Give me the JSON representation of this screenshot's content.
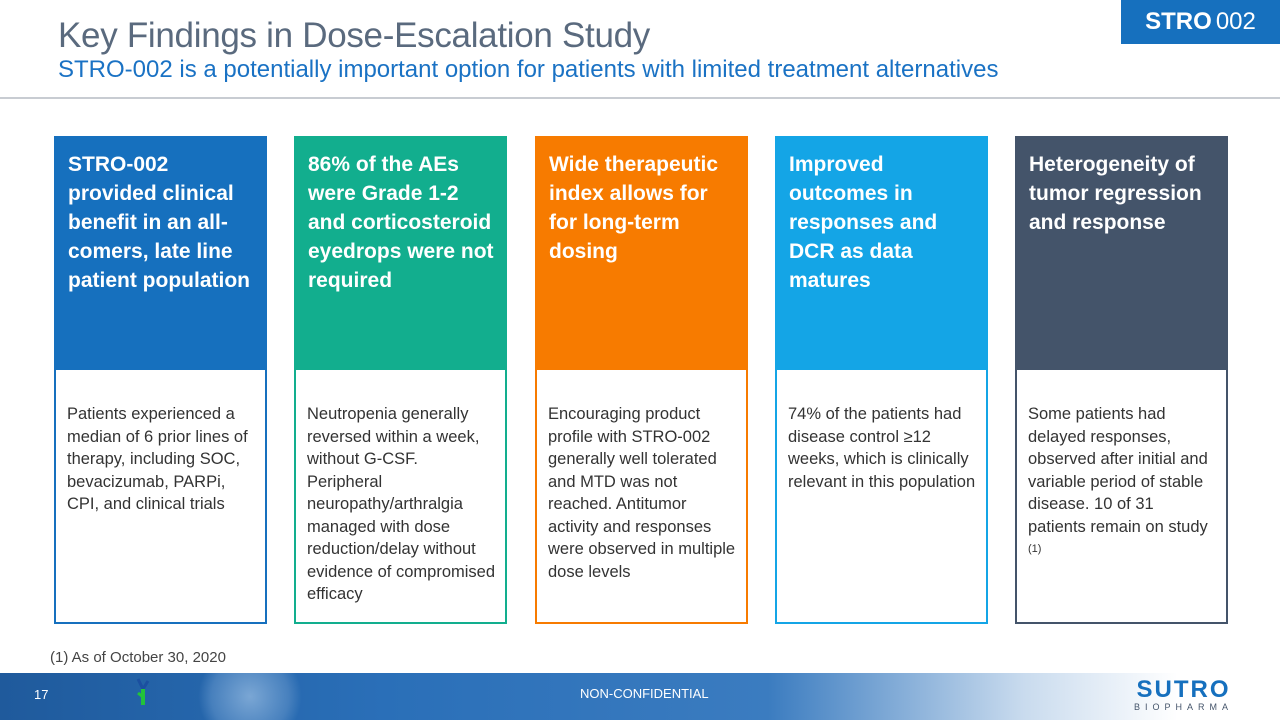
{
  "header": {
    "title": "Key Findings in Dose-Escalation Study",
    "subtitle": "STRO-002 is a potentially important option for patients with limited treatment alternatives",
    "badge_bold": "STRO",
    "badge_rest": "002"
  },
  "cards": [
    {
      "color": "#1670be",
      "heading": "STRO-002 provided clinical benefit in an all-comers, late line patient population",
      "body": "Patients experienced a median of 6 prior lines of therapy, including SOC, bevacizumab, PARPi, CPI, and clinical trials"
    },
    {
      "color": "#12ae8e",
      "heading": "86%  of the AEs were Grade 1-2 and corticosteroid eyedrops were not required",
      "body": "Neutropenia generally reversed within a week, without G-CSF. Peripheral neuropathy/arthralgia managed with dose reduction/delay without evidence of compromised efficacy"
    },
    {
      "color": "#f77b00",
      "heading": "Wide therapeutic index allows for for long-term dosing",
      "body": "Encouraging product profile with STRO-002 generally well tolerated and MTD was not reached. Antitumor activity and responses were observed in multiple dose levels"
    },
    {
      "color": "#14a5e6",
      "heading": "Improved outcomes in responses and DCR as data matures",
      "body": "74% of the patients had disease control ≥12 weeks, which is clinically relevant in this population"
    },
    {
      "color": "#44546a",
      "heading": "Heterogeneity of tumor regression and response",
      "body": "Some patients had delayed responses, observed after initial and variable period of stable disease. 10 of 31 patients remain on study",
      "sup": "(1)"
    }
  ],
  "footnote": "(1) As of October 30, 2020",
  "footer": {
    "page": "17",
    "classification": "NON-CONFIDENTIAL",
    "logo_main": "SUTRO",
    "logo_sub": "BIOPHARMA"
  }
}
